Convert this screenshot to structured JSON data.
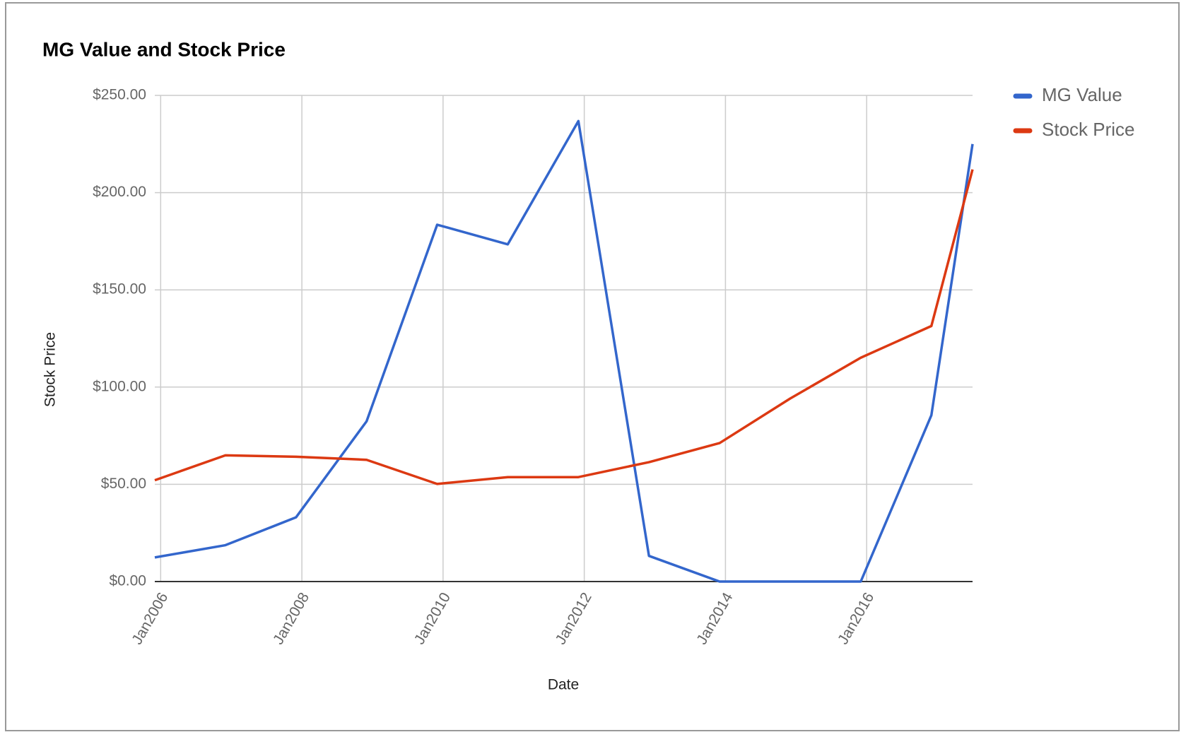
{
  "chart_data": {
    "type": "line",
    "title": "MG Value and Stock Price",
    "x_label": "Date",
    "y_label": "Stock Price",
    "x": [
      "2005-12",
      "2006-12",
      "2007-12",
      "2008-12",
      "2009-12",
      "2010-12",
      "2011-12",
      "2012-12",
      "2013-12",
      "2014-12",
      "2015-12",
      "2016-12",
      "2017-07"
    ],
    "series": [
      {
        "name": "MG Value",
        "color": "#3366cc",
        "values": [
          12.4,
          18.7,
          33,
          82.4,
          183.5,
          173.4,
          236.8,
          13.2,
          0,
          0,
          0,
          85.5,
          225
        ]
      },
      {
        "name": "Stock Price",
        "color": "#dc3912",
        "values": [
          52.1,
          64.9,
          64.2,
          62.6,
          50.2,
          53.7,
          53.7,
          61.4,
          71.2,
          94.1,
          115.1,
          131.4,
          211.9
        ]
      }
    ],
    "xlim": [
      "2005-12",
      "2017-07"
    ],
    "xticks": [
      {
        "value": "2006-01",
        "label": "Jan2006"
      },
      {
        "value": "2008-01",
        "label": "Jan2008"
      },
      {
        "value": "2010-01",
        "label": "Jan2010"
      },
      {
        "value": "2012-01",
        "label": "Jan2012"
      },
      {
        "value": "2014-01",
        "label": "Jan2014"
      },
      {
        "value": "2016-01",
        "label": "Jan2016"
      }
    ],
    "ylim": [
      0,
      250
    ],
    "yticks": [
      {
        "value": 0,
        "label": "$0.00"
      },
      {
        "value": 50,
        "label": "$50.00"
      },
      {
        "value": 100,
        "label": "$100.00"
      },
      {
        "value": 150,
        "label": "$150.00"
      },
      {
        "value": 200,
        "label": "$200.00"
      },
      {
        "value": 250,
        "label": "$250.00"
      }
    ],
    "grid": true,
    "legend": "right"
  }
}
